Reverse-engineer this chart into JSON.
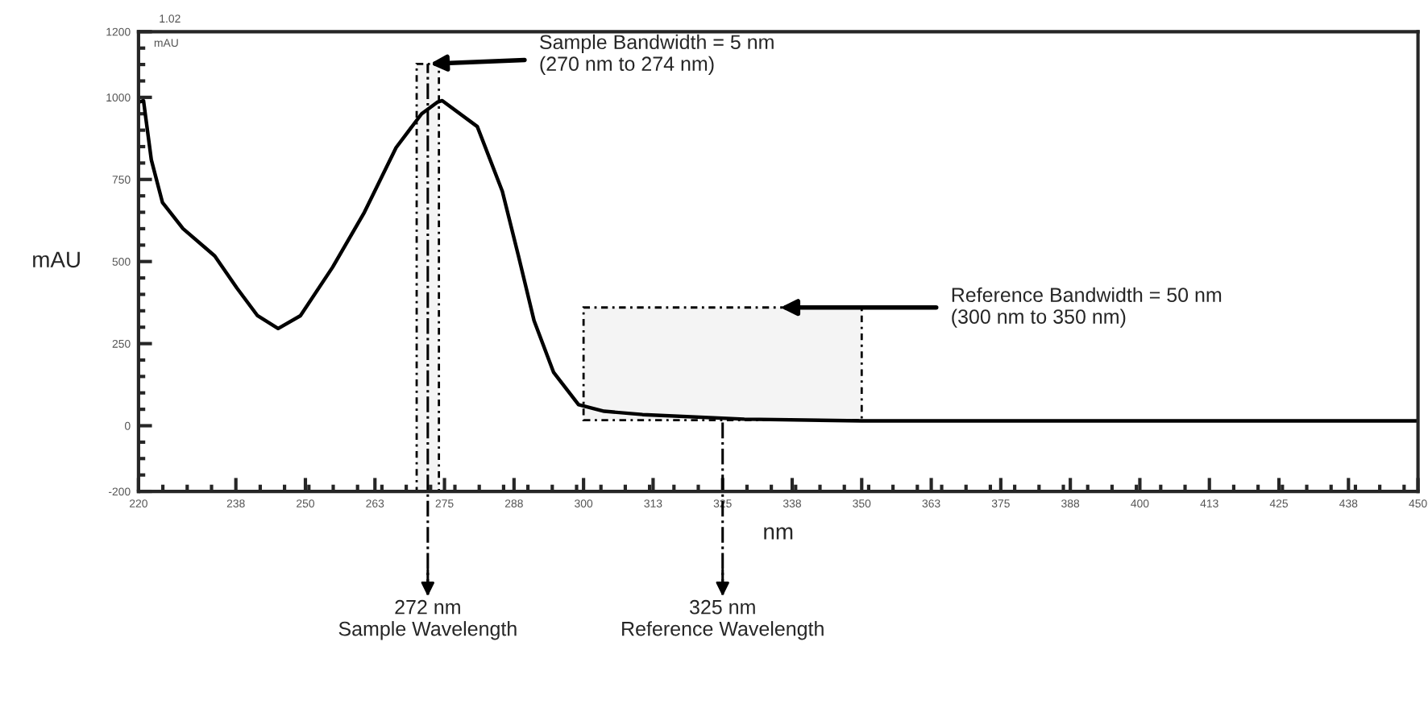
{
  "chart_data": {
    "type": "line",
    "xlabel": "nm",
    "ylabel": "mAU",
    "x": [
      220,
      220.9,
      222.3,
      224.3,
      228,
      233.7,
      237.7,
      241.4,
      245.1,
      249.1,
      254.9,
      260.6,
      266.3,
      270.9,
      273.7,
      274.6,
      280.9,
      285.4,
      288.3,
      291.1,
      294.6,
      299.1,
      303.7,
      310.6,
      328.9,
      350,
      400,
      450
    ],
    "series": [
      {
        "color": "#000000",
        "values": [
          985,
          990,
          810,
          680,
          600,
          517,
          419,
          335,
          296,
          335,
          483,
          650,
          847,
          950,
          985,
          990,
          911,
          714,
          517,
          320,
          163,
          64,
          44,
          34,
          20,
          15,
          15,
          15
        ]
      }
    ],
    "xlim": [
      220,
      450
    ],
    "xticks": [
      220,
      {
        "value": 237.5,
        "label": "238"
      },
      250,
      {
        "value": 262.5,
        "label": "263"
      },
      275,
      {
        "value": 287.5,
        "label": "288"
      },
      300,
      {
        "value": 312.5,
        "label": "313"
      },
      325,
      {
        "value": 337.5,
        "label": "338"
      },
      350,
      {
        "value": 362.5,
        "label": "363"
      },
      375,
      {
        "value": 387.5,
        "label": "388"
      },
      400,
      {
        "value": 412.5,
        "label": "413"
      },
      425,
      {
        "value": 437.5,
        "label": "438"
      },
      450
    ],
    "ylim": [
      -200,
      1200
    ],
    "yticks": [
      -200,
      0,
      250,
      500,
      750,
      1000,
      1200
    ],
    "grid": false,
    "legend": false,
    "marker": "none",
    "line_style": "solid",
    "bands": [
      {
        "axis": "x",
        "from": 270,
        "to": 274,
        "label": "Sample Bandwidth = 5 nm\n(270 nm to 274 nm)"
      },
      {
        "axis": "x",
        "from": 300,
        "to": 350,
        "label": "Reference Bandwidth = 50 nm\n(300 nm to 350 nm)"
      }
    ],
    "ref_lines": [
      {
        "axis": "x",
        "value": 272,
        "label": "272 nm\nSample Wavelength",
        "line_style": "dashed"
      },
      {
        "axis": "x",
        "value": 325,
        "label": "325 nm\nReference Wavelength",
        "line_style": "dashed"
      }
    ],
    "annotations": [
      "1.02",
      "mAU"
    ]
  }
}
